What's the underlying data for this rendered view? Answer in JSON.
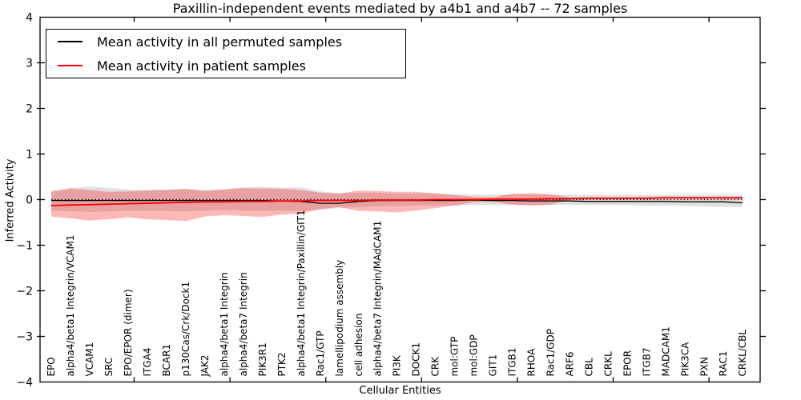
{
  "chart_data": {
    "type": "line",
    "title": "Paxillin-independent events mediated by a4b1 and a4b7 -- 72 samples",
    "xlabel": "Cellular Entities",
    "ylabel": "Inferred Activity",
    "ylim": [
      -4,
      4
    ],
    "yticks": [
      {
        "label": "4",
        "value": 4
      },
      {
        "label": "3",
        "value": 3
      },
      {
        "label": "2",
        "value": 2
      },
      {
        "label": "1",
        "value": 1
      },
      {
        "label": "0",
        "value": 0
      },
      {
        "label": "−1",
        "value": -1
      },
      {
        "label": "−2",
        "value": -2
      },
      {
        "label": "−3",
        "value": -3
      },
      {
        "label": "−4",
        "value": -4
      }
    ],
    "grid": false,
    "legend_position": "upper left",
    "zero_reference_line": {
      "style": "dotted",
      "color": "#000000",
      "y": 0
    },
    "categories": [
      "EPO",
      "alpha4/beta1 Integrin/VCAM1",
      "VCAM1",
      "SRC",
      "EPO/EPOR (dimer)",
      "ITGA4",
      "BCAR1",
      "p130Cas/Crk/Dock1",
      "JAK2",
      "alpha4/beta1 Integrin",
      "alpha4/beta7 Integrin",
      "PIK3R1",
      "PTK2",
      "alpha4/beta1 Integrin/Paxillin/GIT1",
      "Rac1/GTP",
      "lamellipodium assembly",
      "cell adhesion",
      "alpha4/beta7 Integrin/MAdCAM1",
      "PI3K",
      "DOCK1",
      "CRK",
      "mol:GTP",
      "mol:GDP",
      "GIT1",
      "ITGB1",
      "RHOA",
      "Rac1/GDP",
      "ARF6",
      "CBL",
      "CRKL",
      "EPOR",
      "ITGB7",
      "MADCAM1",
      "PIK3CA",
      "PXN",
      "RAC1",
      "CRKL/CBL"
    ],
    "series": [
      {
        "name": "Mean activity in all permuted samples",
        "color": "#000000",
        "values": [
          -0.02,
          -0.02,
          -0.02,
          -0.02,
          -0.02,
          -0.02,
          -0.02,
          -0.02,
          -0.02,
          -0.02,
          -0.02,
          -0.02,
          -0.03,
          -0.04,
          -0.08,
          -0.08,
          -0.04,
          -0.02,
          -0.02,
          -0.02,
          -0.02,
          -0.02,
          -0.01,
          -0.02,
          -0.02,
          -0.03,
          -0.03,
          -0.03,
          -0.04,
          -0.04,
          -0.04,
          -0.04,
          -0.04,
          -0.05,
          -0.05,
          -0.05,
          -0.07
        ],
        "band": {
          "upper": [
            0.2,
            0.26,
            0.28,
            0.26,
            0.22,
            0.21,
            0.22,
            0.24,
            0.21,
            0.23,
            0.27,
            0.28,
            0.26,
            0.27,
            0.18,
            0.14,
            0.15,
            0.15,
            0.14,
            0.13,
            0.12,
            0.12,
            0.11,
            0.11,
            0.11,
            0.11,
            0.11,
            0.1,
            0.1,
            0.1,
            0.1,
            0.1,
            0.1,
            0.1,
            0.1,
            0.1,
            0.1
          ],
          "lower": [
            -0.24,
            -0.26,
            -0.27,
            -0.26,
            -0.24,
            -0.24,
            -0.25,
            -0.26,
            -0.24,
            -0.23,
            -0.24,
            -0.25,
            -0.24,
            -0.25,
            -0.22,
            -0.19,
            -0.16,
            -0.15,
            -0.14,
            -0.13,
            -0.13,
            -0.13,
            -0.12,
            -0.12,
            -0.12,
            -0.12,
            -0.12,
            -0.12,
            -0.12,
            -0.12,
            -0.12,
            -0.13,
            -0.13,
            -0.14,
            -0.15,
            -0.16,
            -0.16
          ],
          "color": "#000000",
          "opacity": 0.12
        }
      },
      {
        "name": "Mean activity in patient samples",
        "color": "#ff0000",
        "values": [
          -0.13,
          -0.12,
          -0.11,
          -0.1,
          -0.09,
          -0.08,
          -0.07,
          -0.06,
          -0.05,
          -0.05,
          -0.04,
          -0.04,
          -0.03,
          -0.03,
          -0.02,
          -0.02,
          -0.02,
          -0.01,
          -0.01,
          -0.01,
          0.0,
          0.0,
          0.0,
          0.01,
          0.01,
          0.01,
          0.02,
          0.02,
          0.03,
          0.03,
          0.03,
          0.03,
          0.04,
          0.04,
          0.04,
          0.04,
          0.04
        ],
        "band": {
          "upper": [
            0.17,
            0.24,
            0.21,
            0.17,
            0.18,
            0.2,
            0.21,
            0.23,
            0.19,
            0.22,
            0.25,
            0.24,
            0.24,
            0.21,
            0.15,
            0.13,
            0.2,
            0.19,
            0.17,
            0.17,
            0.14,
            0.1,
            0.06,
            0.05,
            0.13,
            0.14,
            0.12,
            0.05,
            0.05,
            0.05,
            0.05,
            0.05,
            0.06,
            0.06,
            0.06,
            0.06,
            0.06
          ],
          "lower": [
            -0.37,
            -0.41,
            -0.46,
            -0.43,
            -0.39,
            -0.43,
            -0.45,
            -0.47,
            -0.37,
            -0.34,
            -0.36,
            -0.38,
            -0.33,
            -0.31,
            -0.21,
            -0.16,
            -0.25,
            -0.26,
            -0.28,
            -0.24,
            -0.19,
            -0.13,
            -0.06,
            -0.05,
            -0.11,
            -0.13,
            -0.11,
            0.0,
            0.01,
            0.01,
            0.01,
            0.01,
            0.02,
            0.02,
            0.02,
            0.02,
            0.02
          ],
          "color": "#ff0000",
          "opacity": 0.28
        }
      }
    ]
  }
}
